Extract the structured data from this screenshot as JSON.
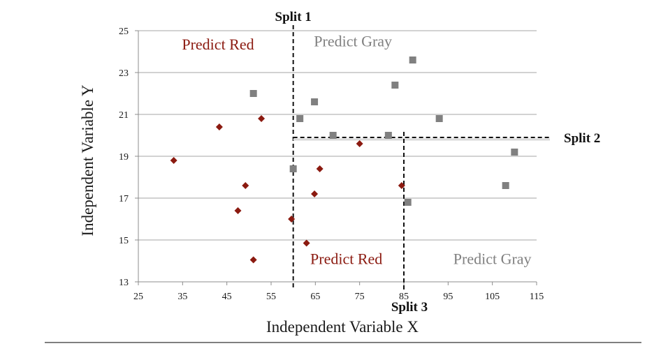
{
  "chart_data": {
    "type": "scatter",
    "title": "",
    "xlabel": "Independent Variable X",
    "ylabel": "Independent Variable Y",
    "xlim": [
      25,
      115
    ],
    "ylim": [
      13,
      25
    ],
    "x_ticks": [
      25,
      35,
      45,
      55,
      65,
      75,
      85,
      95,
      105,
      115
    ],
    "y_ticks": [
      13,
      15,
      17,
      19,
      21,
      23,
      25
    ],
    "grid": "horizontal",
    "series": [
      {
        "marker": "diamond",
        "color": "#8b1a10",
        "points": [
          [
            33,
            18.8
          ],
          [
            43.3,
            20.4
          ],
          [
            47.5,
            16.4
          ],
          [
            49.2,
            17.6
          ],
          [
            51,
            14.05
          ],
          [
            52.8,
            20.8
          ],
          [
            59.6,
            16.0
          ],
          [
            63.0,
            14.85
          ],
          [
            64.8,
            17.2
          ],
          [
            66.0,
            18.4
          ],
          [
            75.0,
            19.6
          ],
          [
            84.5,
            17.6
          ]
        ]
      },
      {
        "marker": "square",
        "color": "#808080",
        "points": [
          [
            51.0,
            22.0
          ],
          [
            60.0,
            18.4
          ],
          [
            61.5,
            20.8
          ],
          [
            64.8,
            21.6
          ],
          [
            69.0,
            20.0
          ],
          [
            81.5,
            20.0
          ],
          [
            83.0,
            22.4
          ],
          [
            85.9,
            16.8
          ],
          [
            87.0,
            23.6
          ],
          [
            93.0,
            20.8
          ],
          [
            108.0,
            17.6
          ],
          [
            110.0,
            19.2
          ]
        ]
      }
    ],
    "splits": [
      {
        "label": "Split 1",
        "axis": "x",
        "value": 60,
        "y_range": [
          13,
          25
        ]
      },
      {
        "label": "Split 2",
        "axis": "y",
        "value": 19.9,
        "x_range": [
          60,
          118
        ]
      },
      {
        "label": "Split 3",
        "axis": "x",
        "value": 85,
        "y_range": [
          13,
          19.9
        ]
      }
    ],
    "regions": [
      {
        "label": "Predict Red",
        "color": "#8b1a10",
        "x": 43,
        "y": 24.1
      },
      {
        "label": "Predict Gray",
        "color": "#808080",
        "x": 73.5,
        "y": 24.25
      },
      {
        "label": "Predict Red",
        "color": "#8b1a10",
        "x": 72,
        "y": 13.85
      },
      {
        "label": "Predict Gray",
        "color": "#808080",
        "x": 105,
        "y": 13.85
      }
    ]
  }
}
